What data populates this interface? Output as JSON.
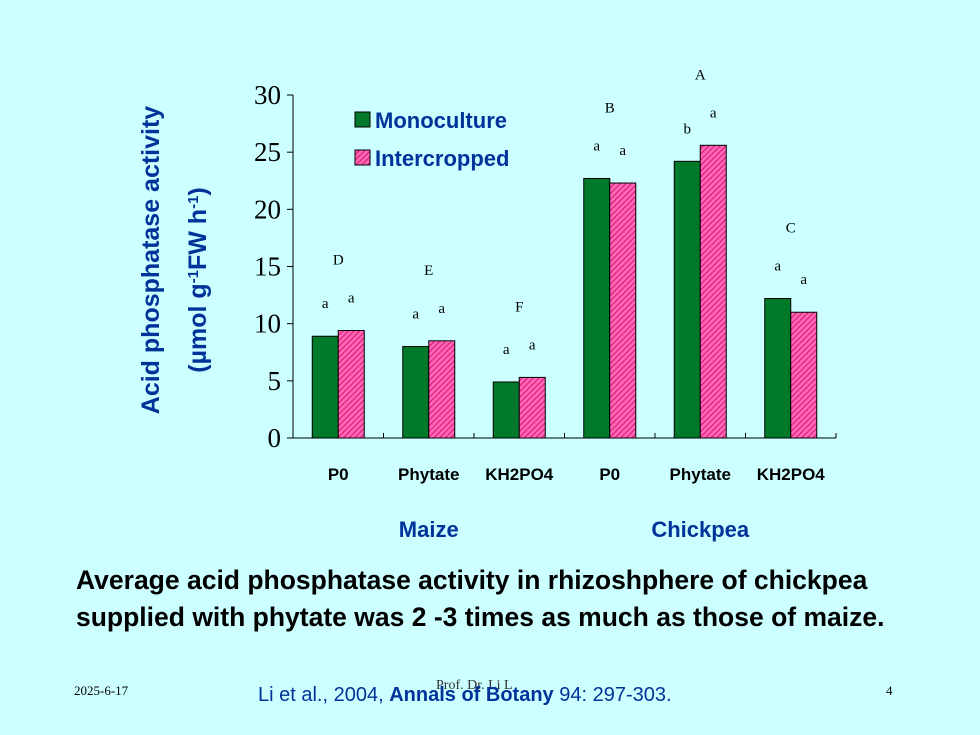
{
  "colors": {
    "background": "#ccffff",
    "monoculture": "#007a2a",
    "intercropped": "#ff3399",
    "accent_text": "#003399"
  },
  "chart_data": {
    "type": "bar",
    "ylabel_line1": "Acid phosphatase activity",
    "ylabel_line2": {
      "base": "(µmol g",
      "sup1": "-1",
      "mid": "FW h",
      "sup2": "-1",
      "end": ")"
    },
    "ylim": [
      0,
      30
    ],
    "yticks": [
      0,
      5,
      10,
      15,
      20,
      25,
      30
    ],
    "grid": false,
    "legend_position": "top-left",
    "categories": [
      "P0",
      "Phytate",
      "KH2PO4",
      "P0",
      "Phytate",
      "KH2PO4"
    ],
    "groups": [
      {
        "label": "Maize",
        "categories": [
          0,
          1,
          2
        ]
      },
      {
        "label": "Chickpea",
        "categories": [
          3,
          4,
          5
        ]
      }
    ],
    "series": [
      {
        "name": "Monoculture",
        "values": [
          8.9,
          8.0,
          4.9,
          22.7,
          24.2,
          12.2
        ]
      },
      {
        "name": "Intercropped",
        "values": [
          9.4,
          8.5,
          5.3,
          22.3,
          25.6,
          11.0
        ]
      }
    ],
    "annotations": {
      "category_letters": [
        "D",
        "E",
        "F",
        "B",
        "A",
        "C"
      ],
      "bar_letters": [
        [
          "a",
          "a"
        ],
        [
          "a",
          "a"
        ],
        [
          "a",
          "a"
        ],
        [
          "a",
          "a"
        ],
        [
          "b",
          "a"
        ],
        [
          "a",
          "a"
        ]
      ]
    }
  },
  "caption": "Average acid phosphatase activity in rhizoshphere of chickpea supplied with phytate was 2 -3 times as much as those of maize.",
  "footer": {
    "date": "2025-6-17",
    "author": "Prof. Dr. Li L",
    "page": "4",
    "citation": {
      "authors": "Li et al., 2004, ",
      "journal": "Annals of Botany",
      "volume": " 94: 297-303."
    }
  }
}
